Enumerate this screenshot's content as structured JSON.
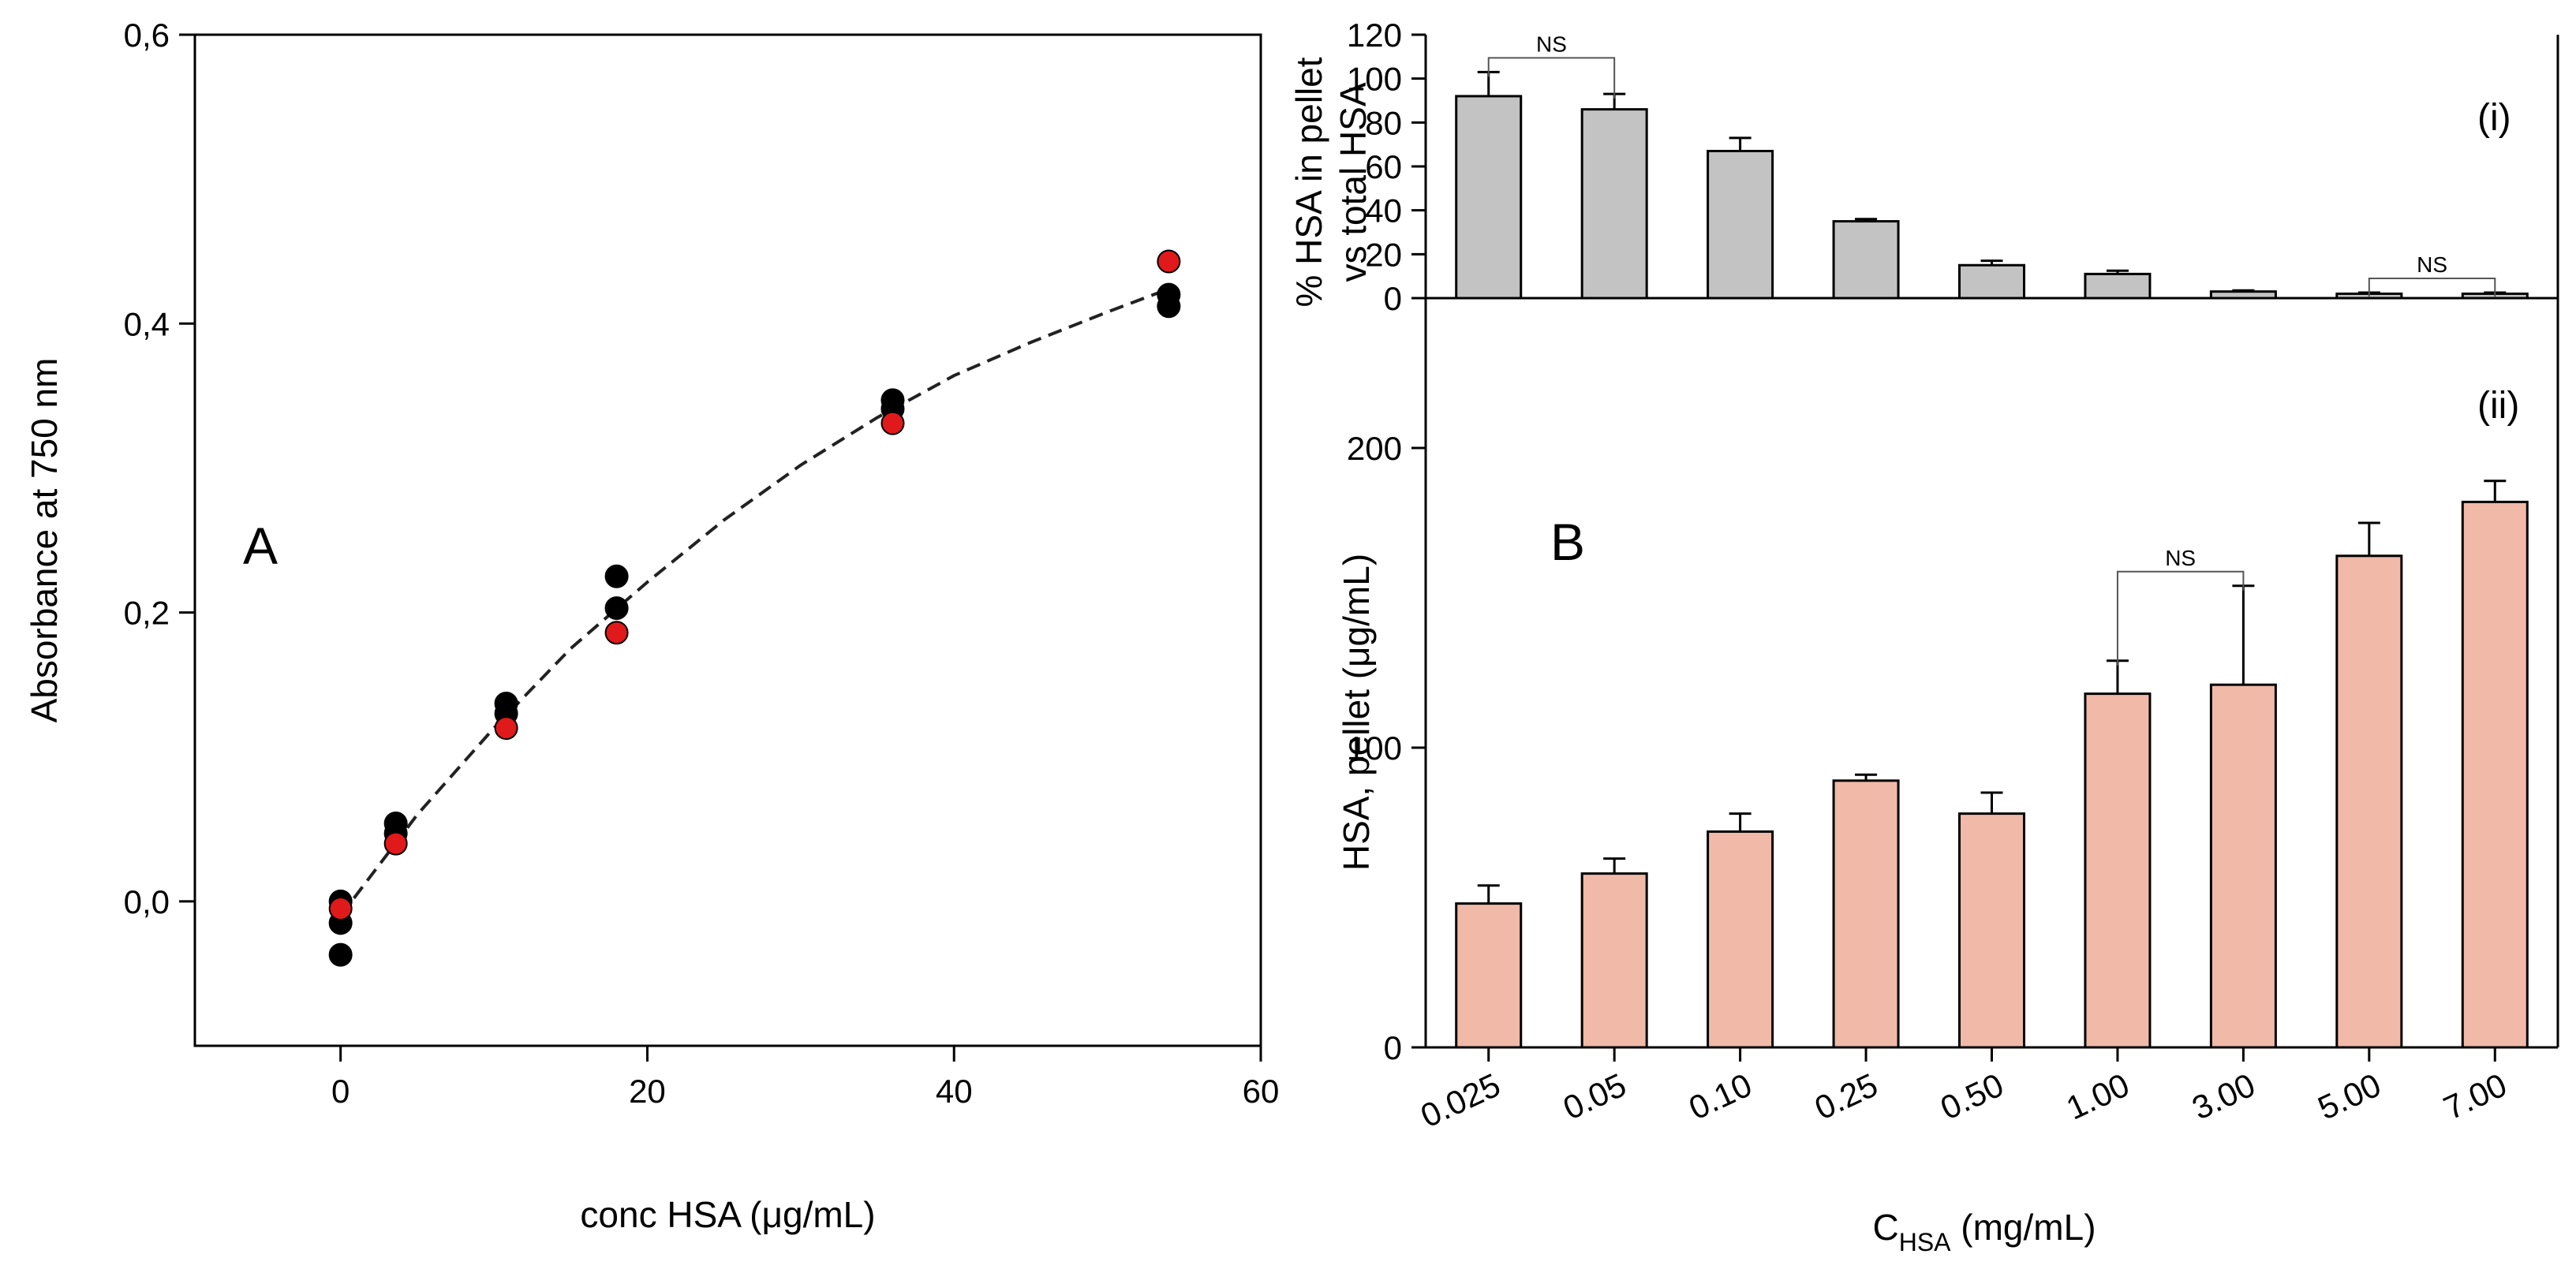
{
  "chart_data": [
    {
      "id": "A",
      "type": "scatter",
      "panel_label": "A",
      "xlabel": "conc HSA (μg/mL)",
      "ylabel": "Absorbance at 750 nm",
      "xlim": [
        -9.5,
        60
      ],
      "ylim": [
        -0.1,
        0.6
      ],
      "xticks": [
        0,
        20,
        40,
        60
      ],
      "xtick_labels": [
        "0",
        "20",
        "40",
        "60"
      ],
      "yticks": [
        0.0,
        0.2,
        0.4,
        0.6
      ],
      "ytick_labels": [
        "0,0",
        "0,2",
        "0,4",
        "0,6"
      ],
      "colors": {
        "series_black": "#000000",
        "series_red": "#e0191b",
        "fit": "#222222"
      },
      "series": [
        {
          "name": "replicates",
          "color": "#000000",
          "points": [
            [
              0,
              0.0
            ],
            [
              0,
              -0.015
            ],
            [
              0,
              -0.037
            ],
            [
              3.6,
              0.054
            ],
            [
              3.6,
              0.047
            ],
            [
              10.8,
              0.137
            ],
            [
              10.8,
              0.13
            ],
            [
              18,
              0.225
            ],
            [
              18,
              0.203
            ],
            [
              36,
              0.347
            ],
            [
              36,
              0.341
            ],
            [
              54,
              0.42
            ],
            [
              54,
              0.412
            ]
          ]
        },
        {
          "name": "replicate (red)",
          "color": "#e0191b",
          "points": [
            [
              0,
              -0.005
            ],
            [
              3.6,
              0.04
            ],
            [
              10.8,
              0.12
            ],
            [
              18,
              0.186
            ],
            [
              36,
              0.331
            ],
            [
              54,
              0.443
            ]
          ]
        }
      ],
      "fit": {
        "style": "dashed",
        "points": [
          [
            0,
            -0.01
          ],
          [
            5,
            0.06
          ],
          [
            10,
            0.12
          ],
          [
            15,
            0.175
          ],
          [
            20,
            0.221
          ],
          [
            25,
            0.264
          ],
          [
            30,
            0.302
          ],
          [
            35,
            0.335
          ],
          [
            40,
            0.364
          ],
          [
            45,
            0.387
          ],
          [
            50,
            0.408
          ],
          [
            54,
            0.424
          ]
        ]
      }
    },
    {
      "id": "B-i",
      "type": "bar",
      "panel_tag": "(i)",
      "ylabel": [
        "% HSA in pellet",
        "vs total HSA"
      ],
      "categories": [
        "0.025",
        "0.05",
        "0.10",
        "0.25",
        "0.50",
        "1.00",
        "3.00",
        "5.00",
        "7.00"
      ],
      "values": [
        92,
        86,
        67,
        35,
        15,
        11,
        3,
        2,
        2
      ],
      "errors": [
        11,
        7,
        6,
        1,
        2,
        1.5,
        0.5,
        0.5,
        0.5
      ],
      "ylim": [
        0,
        120
      ],
      "yticks": [
        0,
        20,
        40,
        60,
        80,
        100,
        120
      ],
      "ytick_labels": [
        "0",
        "20",
        "40",
        "60",
        "80",
        "100",
        "120"
      ],
      "bar_color": "#c3c3c3",
      "annotations": [
        {
          "text": "NS",
          "between": [
            0,
            1
          ]
        },
        {
          "text": "NS",
          "between": [
            7,
            8
          ]
        }
      ]
    },
    {
      "id": "B-ii",
      "type": "bar",
      "panel_tag": "(ii)",
      "panel_label": "B",
      "ylabel": "HSA, pellet (μg/mL)",
      "xlabel_main": "C",
      "xlabel_sub": "HSA",
      "xlabel_tail": " (mg/mL)",
      "categories": [
        "0.025",
        "0.05",
        "0.10",
        "0.25",
        "0.50",
        "1.00",
        "3.00",
        "5.00",
        "7.00"
      ],
      "values": [
        48,
        58,
        72,
        89,
        78,
        118,
        121,
        164,
        182
      ],
      "errors": [
        6,
        5,
        6,
        2,
        7,
        11,
        33,
        11,
        7
      ],
      "ylim": [
        0,
        250
      ],
      "yticks": [
        0,
        100,
        200
      ],
      "ytick_labels": [
        "0",
        "100",
        "200"
      ],
      "bar_color": "#f0b9a8",
      "annotations": [
        {
          "text": "NS",
          "between": [
            5,
            6
          ]
        }
      ]
    }
  ]
}
